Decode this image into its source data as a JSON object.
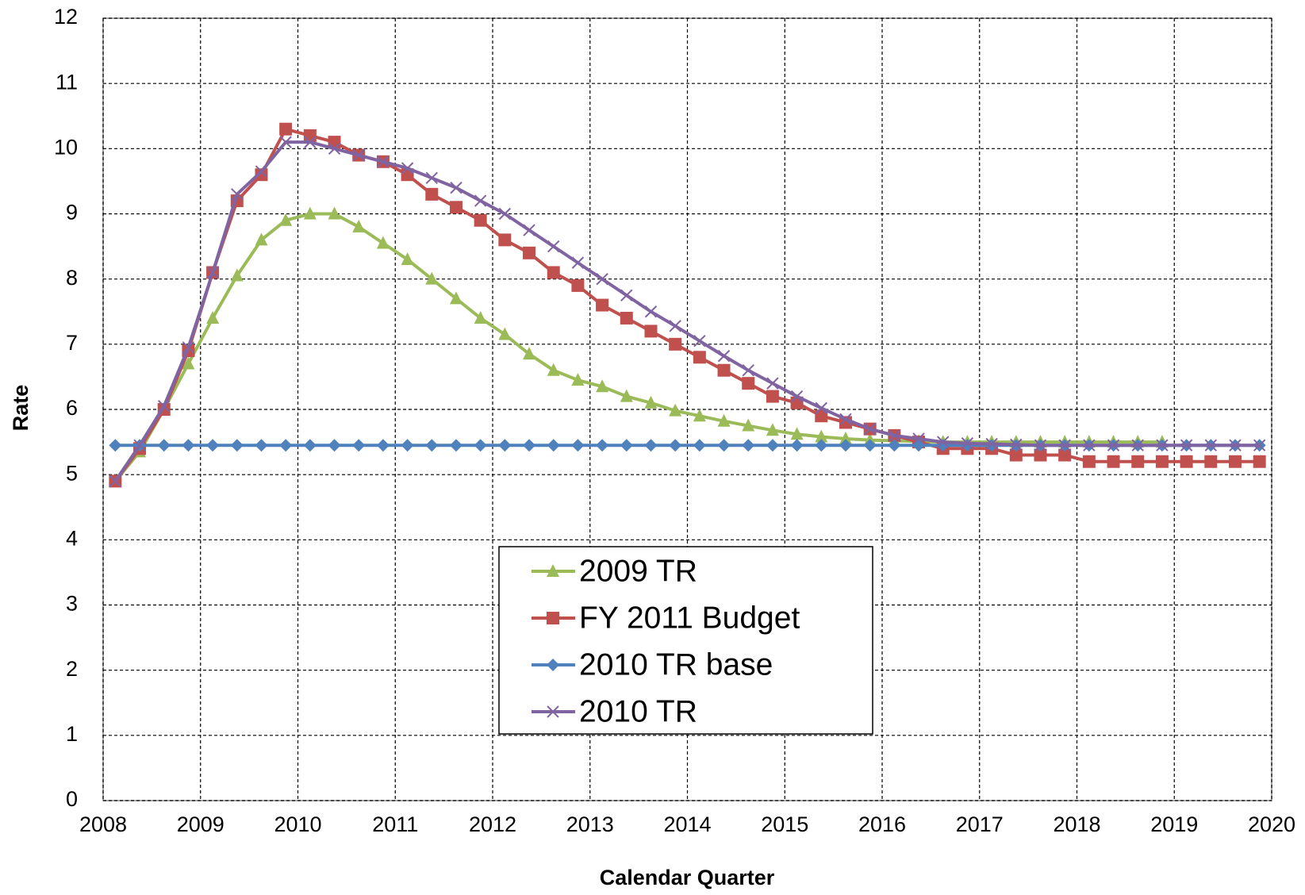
{
  "chart_data": {
    "type": "line",
    "x_label": "Calendar Quarter",
    "y_label": "Rate",
    "x": [
      2008.125,
      2008.375,
      2008.625,
      2008.875,
      2009.125,
      2009.375,
      2009.625,
      2009.875,
      2010.125,
      2010.375,
      2010.625,
      2010.875,
      2011.125,
      2011.375,
      2011.625,
      2011.875,
      2012.125,
      2012.375,
      2012.625,
      2012.875,
      2013.125,
      2013.375,
      2013.625,
      2013.875,
      2014.125,
      2014.375,
      2014.625,
      2014.875,
      2015.125,
      2015.375,
      2015.625,
      2015.875,
      2016.125,
      2016.375,
      2016.625,
      2016.875,
      2017.125,
      2017.375,
      2017.625,
      2017.875,
      2018.125,
      2018.375,
      2018.625,
      2018.875,
      2019.125,
      2019.375,
      2019.625,
      2019.875
    ],
    "series": [
      {
        "name": "2009 TR",
        "color": "#9bbb59",
        "marker": "triangle",
        "values": [
          4.9,
          5.35,
          6.0,
          6.7,
          7.4,
          8.05,
          8.6,
          8.9,
          9.0,
          9.0,
          8.8,
          8.55,
          8.3,
          8.0,
          7.7,
          7.4,
          7.15,
          6.85,
          6.6,
          6.45,
          6.35,
          6.2,
          6.1,
          5.98,
          5.9,
          5.82,
          5.75,
          5.68,
          5.62,
          5.58,
          5.55,
          5.53,
          5.52,
          5.51,
          5.5,
          5.5,
          5.5,
          5.5,
          5.5,
          5.5,
          5.5,
          5.5,
          5.5,
          5.5,
          null,
          null,
          null,
          null
        ]
      },
      {
        "name": "FY 2011 Budget",
        "color": "#c0504d",
        "marker": "square",
        "values": [
          4.9,
          5.4,
          6.0,
          6.9,
          8.1,
          9.2,
          9.6,
          10.3,
          10.2,
          10.1,
          9.9,
          9.8,
          9.6,
          9.3,
          9.1,
          8.9,
          8.6,
          8.4,
          8.1,
          7.9,
          7.6,
          7.4,
          7.2,
          7.0,
          6.8,
          6.6,
          6.4,
          6.2,
          6.1,
          5.9,
          5.8,
          5.7,
          5.6,
          5.5,
          5.4,
          5.4,
          5.4,
          5.3,
          5.3,
          5.3,
          5.2,
          5.2,
          5.2,
          5.2,
          5.2,
          5.2,
          5.2,
          5.2
        ]
      },
      {
        "name": "2010 TR base",
        "color": "#4f81bd",
        "marker": "diamond",
        "values": [
          5.45,
          5.45,
          5.45,
          5.45,
          5.45,
          5.45,
          5.45,
          5.45,
          5.45,
          5.45,
          5.45,
          5.45,
          5.45,
          5.45,
          5.45,
          5.45,
          5.45,
          5.45,
          5.45,
          5.45,
          5.45,
          5.45,
          5.45,
          5.45,
          5.45,
          5.45,
          5.45,
          5.45,
          5.45,
          5.45,
          5.45,
          5.45,
          5.45,
          5.45,
          5.45,
          5.45,
          5.45,
          5.45,
          5.45,
          5.45,
          5.45,
          5.45,
          5.45,
          5.45,
          5.45,
          5.45,
          5.45,
          5.45
        ]
      },
      {
        "name": "2010 TR",
        "color": "#8064a2",
        "marker": "x",
        "values": [
          4.9,
          5.45,
          6.05,
          6.95,
          8.1,
          9.3,
          9.65,
          10.1,
          10.1,
          10.0,
          9.9,
          9.8,
          9.7,
          9.55,
          9.4,
          9.2,
          9.0,
          8.75,
          8.5,
          8.25,
          8.0,
          7.75,
          7.5,
          7.28,
          7.05,
          6.82,
          6.6,
          6.4,
          6.2,
          6.02,
          5.85,
          5.7,
          5.6,
          5.55,
          5.5,
          5.48,
          5.47,
          5.46,
          5.45,
          5.45,
          5.45,
          5.45,
          5.45,
          5.45,
          5.45,
          5.45,
          5.45,
          5.45
        ]
      }
    ],
    "xlim": [
      2008,
      2020
    ],
    "xticks": [
      2008,
      2009,
      2010,
      2011,
      2012,
      2013,
      2014,
      2015,
      2016,
      2017,
      2018,
      2019,
      2020
    ],
    "ylim": [
      0,
      12
    ],
    "yticks": [
      0,
      1,
      2,
      3,
      4,
      5,
      6,
      7,
      8,
      9,
      10,
      11,
      12
    ],
    "grid": true,
    "legend": "bottom-center"
  }
}
